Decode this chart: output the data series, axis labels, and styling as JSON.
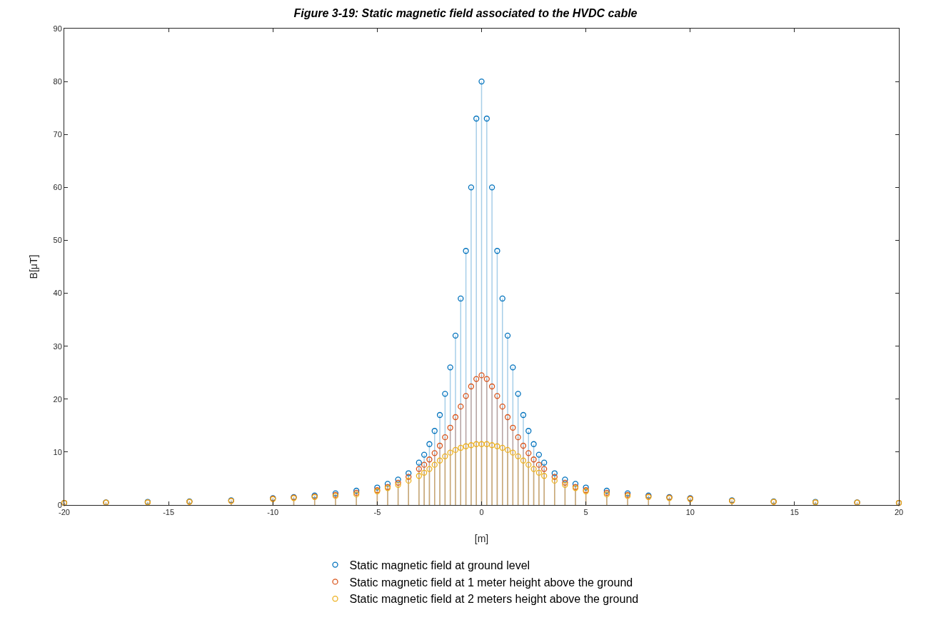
{
  "chart_data": {
    "type": "lollipop",
    "title": "Figure 3-19: Static magnetic field associated to the HVDC cable",
    "xlabel": "[m]",
    "ylabel": "B[μT]",
    "x": [
      -20,
      -18,
      -16,
      -14,
      -12,
      -10,
      -9,
      -8,
      -7,
      -6,
      -5,
      -4.5,
      -4,
      -3.5,
      -3,
      -2.75,
      -2.5,
      -2.25,
      -2,
      -1.75,
      -1.5,
      -1.25,
      -1,
      -0.75,
      -0.5,
      -0.25,
      0,
      0.25,
      0.5,
      0.75,
      1,
      1.25,
      1.5,
      1.75,
      2,
      2.25,
      2.5,
      2.75,
      3,
      3.5,
      4,
      4.5,
      5,
      6,
      7,
      8,
      9,
      10,
      12,
      14,
      16,
      18,
      20
    ],
    "series": [
      {
        "name": "Static magnetic field at ground level",
        "color": "#0072bd",
        "values": [
          0.4,
          0.5,
          0.6,
          0.7,
          0.9,
          1.3,
          1.5,
          1.8,
          2.2,
          2.7,
          3.3,
          4,
          4.8,
          6,
          8,
          9.5,
          11.5,
          14,
          17,
          21,
          26,
          32,
          39,
          48,
          60,
          73,
          80,
          73,
          60,
          48,
          39,
          32,
          26,
          21,
          17,
          14,
          11.5,
          9.5,
          8,
          6,
          4.8,
          4,
          3.3,
          2.7,
          2.2,
          1.8,
          1.5,
          1.3,
          0.9,
          0.7,
          0.6,
          0.5,
          0.4
        ]
      },
      {
        "name": "Static magnetic field at 1 meter height above the ground",
        "color": "#d95319",
        "values": [
          0.4,
          0.45,
          0.5,
          0.6,
          0.8,
          1.2,
          1.4,
          1.6,
          1.9,
          2.3,
          2.8,
          3.4,
          4.2,
          5.3,
          6.8,
          7.6,
          8.6,
          9.8,
          11.2,
          12.8,
          14.6,
          16.6,
          18.6,
          20.6,
          22.4,
          23.8,
          24.5,
          23.8,
          22.4,
          20.6,
          18.6,
          16.6,
          14.6,
          12.8,
          11.2,
          9.8,
          8.6,
          7.6,
          6.8,
          5.3,
          4.2,
          3.4,
          2.8,
          2.3,
          1.9,
          1.6,
          1.4,
          1.2,
          0.8,
          0.6,
          0.5,
          0.45,
          0.4
        ]
      },
      {
        "name": "Static magnetic field at 2 meters height above the ground",
        "color": "#edb120",
        "values": [
          0.4,
          0.45,
          0.5,
          0.6,
          0.75,
          1.1,
          1.3,
          1.5,
          1.7,
          2.0,
          2.6,
          3.2,
          3.8,
          4.6,
          5.5,
          6.1,
          6.8,
          7.6,
          8.4,
          9.2,
          9.9,
          10.4,
          10.8,
          11.1,
          11.3,
          11.5,
          11.5,
          11.5,
          11.3,
          11.1,
          10.8,
          10.4,
          9.9,
          9.2,
          8.4,
          7.6,
          6.8,
          6.1,
          5.5,
          4.6,
          3.8,
          3.2,
          2.6,
          2.0,
          1.7,
          1.5,
          1.3,
          1.1,
          0.75,
          0.6,
          0.5,
          0.45,
          0.4
        ]
      }
    ],
    "xlim": [
      -20,
      20
    ],
    "xticks": [
      -20,
      -15,
      -10,
      -5,
      0,
      5,
      10,
      15,
      20
    ],
    "ylim": [
      0,
      90
    ],
    "yticks": [
      0,
      10,
      20,
      30,
      40,
      50,
      60,
      70,
      80,
      90
    ],
    "grid": false,
    "legend": "bottom",
    "marker": "circle"
  }
}
